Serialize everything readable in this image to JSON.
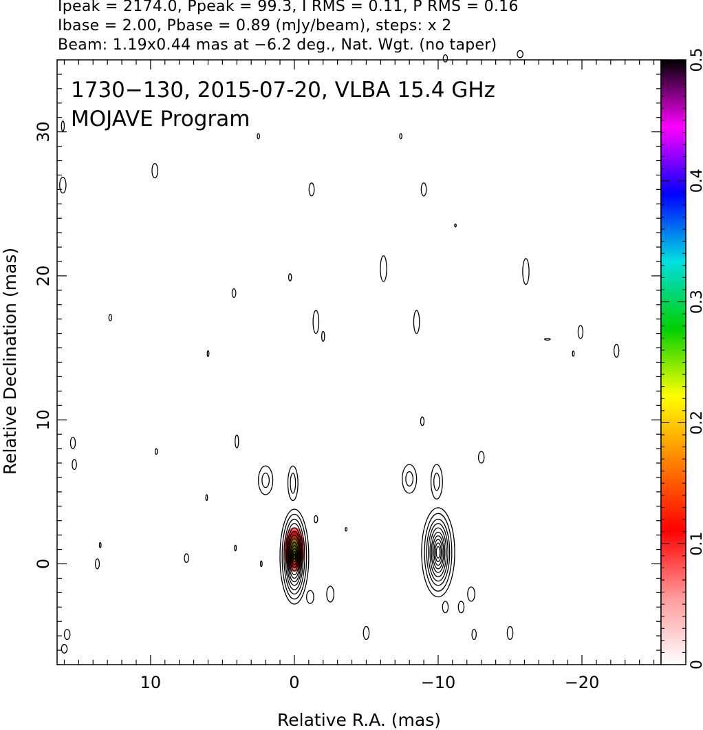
{
  "header": {
    "line1": "Ipeak = 2174.0, Ppeak = 99.3, I RMS = 0.11, P RMS = 0.16",
    "line2": "Ibase = 2.00, Pbase = 0.89 (mJy/beam), steps: x 2",
    "line3": "Beam: 1.19x0.44 mas at −6.2 deg., Nat. Wgt. (no taper)"
  },
  "chart_data": {
    "type": "contour",
    "title": "1730−130, 2015-07-20, VLBA 15.4 GHz",
    "subtitle": "MOJAVE Program",
    "xlabel": "Relative R.A. (mas)",
    "ylabel": "Relative Declination (mas)",
    "xlim": [
      16.5,
      -25.5
    ],
    "ylim": [
      -7,
      35
    ],
    "x_ticks": [
      10,
      0,
      -10,
      -20
    ],
    "x_tick_labels": [
      "10",
      "0",
      "−10",
      "−20"
    ],
    "y_ticks": [
      0,
      10,
      20,
      30
    ],
    "y_tick_labels": [
      "0",
      "10",
      "20",
      "30"
    ],
    "colorbar": {
      "min": 0,
      "max": 0.5,
      "ticks": [
        0,
        0.1,
        0.2,
        0.3,
        0.4,
        0.5
      ],
      "tick_labels": [
        "0",
        "0.1",
        "0.2",
        "0.3",
        "0.4",
        "0.5"
      ],
      "stops": [
        "#ffffff",
        "#ff9a9a",
        "#ff0000",
        "#ff8000",
        "#ffff00",
        "#00d000",
        "#00e0e0",
        "#0000ff",
        "#ff00ff",
        "#000000"
      ]
    },
    "components": [
      {
        "name": "core",
        "x": 0.0,
        "y": 0.5,
        "levels": [
          [
            1.0,
            3.3
          ],
          [
            0.85,
            2.95
          ],
          [
            0.72,
            2.6
          ],
          [
            0.62,
            2.3
          ],
          [
            0.54,
            2.0
          ],
          [
            0.47,
            1.75
          ],
          [
            0.41,
            1.5
          ],
          [
            0.35,
            1.25
          ],
          [
            0.29,
            1.0
          ],
          [
            0.23,
            0.78
          ],
          [
            0.17,
            0.56
          ],
          [
            0.11,
            0.36
          ],
          [
            0.06,
            0.18
          ]
        ]
      },
      {
        "name": "twin-image",
        "x": -10.0,
        "y": 0.8,
        "levels": [
          [
            1.15,
            3.1
          ],
          [
            0.95,
            2.7
          ],
          [
            0.8,
            2.3
          ],
          [
            0.68,
            2.0
          ],
          [
            0.57,
            1.7
          ],
          [
            0.47,
            1.4
          ],
          [
            0.38,
            1.15
          ],
          [
            0.29,
            0.9
          ],
          [
            0.21,
            0.65
          ],
          [
            0.13,
            0.4
          ]
        ]
      },
      {
        "name": "blob",
        "x": 2.0,
        "y": 5.8,
        "levels": [
          [
            0.5,
            1.0
          ],
          [
            0.25,
            0.5
          ]
        ]
      },
      {
        "name": "blob",
        "x": 0.1,
        "y": 5.6,
        "levels": [
          [
            0.35,
            1.2
          ],
          [
            0.18,
            0.7
          ]
        ]
      },
      {
        "name": "blob",
        "x": -8.0,
        "y": 5.9,
        "levels": [
          [
            0.5,
            1.0
          ],
          [
            0.25,
            0.5
          ]
        ]
      },
      {
        "name": "blob",
        "x": -9.9,
        "y": 5.7,
        "levels": [
          [
            0.4,
            1.2
          ],
          [
            0.2,
            0.6
          ]
        ]
      },
      {
        "name": "blob",
        "x": -1.2,
        "y": 26.0,
        "levels": [
          [
            0.18,
            0.45
          ]
        ]
      },
      {
        "name": "blob",
        "x": -9.0,
        "y": 26.0,
        "levels": [
          [
            0.18,
            0.45
          ]
        ]
      },
      {
        "name": "blob",
        "x": 9.7,
        "y": 27.3,
        "levels": [
          [
            0.2,
            0.5
          ]
        ]
      },
      {
        "name": "blob",
        "x": 16.1,
        "y": 26.3,
        "levels": [
          [
            0.22,
            0.55
          ]
        ]
      },
      {
        "name": "blob",
        "x": -6.2,
        "y": 20.5,
        "levels": [
          [
            0.22,
            0.9
          ]
        ]
      },
      {
        "name": "blob",
        "x": -16.1,
        "y": 20.3,
        "levels": [
          [
            0.22,
            0.9
          ]
        ]
      },
      {
        "name": "blob",
        "x": -1.5,
        "y": 16.8,
        "levels": [
          [
            0.2,
            0.8
          ]
        ]
      },
      {
        "name": "blob",
        "x": -8.5,
        "y": 16.8,
        "levels": [
          [
            0.2,
            0.8
          ]
        ]
      },
      {
        "name": "blob",
        "x": -19.9,
        "y": 16.1,
        "levels": [
          [
            0.17,
            0.45
          ]
        ]
      },
      {
        "name": "blob",
        "x": -22.4,
        "y": 14.8,
        "levels": [
          [
            0.17,
            0.45
          ]
        ]
      },
      {
        "name": "blob",
        "x": 4.2,
        "y": 18.8,
        "levels": [
          [
            0.13,
            0.3
          ]
        ]
      },
      {
        "name": "blob",
        "x": 15.4,
        "y": 8.4,
        "levels": [
          [
            0.17,
            0.4
          ]
        ]
      },
      {
        "name": "blob",
        "x": 15.3,
        "y": 6.9,
        "levels": [
          [
            0.15,
            0.35
          ]
        ]
      },
      {
        "name": "blob",
        "x": -13.0,
        "y": 7.4,
        "levels": [
          [
            0.2,
            0.4
          ]
        ]
      },
      {
        "name": "blob",
        "x": -8.9,
        "y": 9.9,
        "levels": [
          [
            0.12,
            0.3
          ]
        ]
      },
      {
        "name": "blob",
        "x": -2.5,
        "y": -2.1,
        "levels": [
          [
            0.25,
            0.55
          ]
        ]
      },
      {
        "name": "blob",
        "x": -1.1,
        "y": -2.3,
        "levels": [
          [
            0.25,
            0.45
          ]
        ]
      },
      {
        "name": "blob",
        "x": -12.3,
        "y": -2.1,
        "levels": [
          [
            0.25,
            0.5
          ]
        ]
      },
      {
        "name": "blob",
        "x": -10.5,
        "y": -3.0,
        "levels": [
          [
            0.2,
            0.4
          ]
        ]
      },
      {
        "name": "blob",
        "x": -11.6,
        "y": -3.0,
        "levels": [
          [
            0.2,
            0.4
          ]
        ]
      },
      {
        "name": "blob",
        "x": 13.7,
        "y": 0.0,
        "levels": [
          [
            0.14,
            0.35
          ]
        ]
      },
      {
        "name": "blob",
        "x": 7.5,
        "y": 0.4,
        "levels": [
          [
            0.15,
            0.3
          ]
        ]
      },
      {
        "name": "blob",
        "x": -5.0,
        "y": -4.8,
        "levels": [
          [
            0.2,
            0.45
          ]
        ]
      },
      {
        "name": "blob",
        "x": -15.0,
        "y": -4.8,
        "levels": [
          [
            0.2,
            0.45
          ]
        ]
      },
      {
        "name": "blob",
        "x": 15.8,
        "y": -4.9,
        "levels": [
          [
            0.2,
            0.35
          ]
        ]
      },
      {
        "name": "blob",
        "x": -12.5,
        "y": -4.9,
        "levels": [
          [
            0.15,
            0.35
          ]
        ]
      },
      {
        "name": "blob",
        "x": -10.5,
        "y": 35.1,
        "levels": [
          [
            0.15,
            0.25
          ]
        ]
      },
      {
        "name": "blob",
        "x": -15.7,
        "y": 35.4,
        "levels": [
          [
            0.2,
            0.25
          ]
        ]
      },
      {
        "name": "blob",
        "x": 16.1,
        "y": 30.4,
        "levels": [
          [
            0.1,
            0.35
          ]
        ]
      },
      {
        "name": "blob",
        "x": 2.5,
        "y": 29.7,
        "levels": [
          [
            0.08,
            0.18
          ]
        ]
      },
      {
        "name": "blob",
        "x": -7.4,
        "y": 29.7,
        "levels": [
          [
            0.08,
            0.18
          ]
        ]
      },
      {
        "name": "blob",
        "x": 12.8,
        "y": 17.1,
        "levels": [
          [
            0.1,
            0.22
          ]
        ]
      },
      {
        "name": "blob",
        "x": 9.6,
        "y": 7.8,
        "levels": [
          [
            0.08,
            0.2
          ]
        ]
      },
      {
        "name": "blob",
        "x": 4.0,
        "y": 8.5,
        "levels": [
          [
            0.12,
            0.45
          ]
        ]
      },
      {
        "name": "blob",
        "x": 0.3,
        "y": 19.9,
        "levels": [
          [
            0.1,
            0.25
          ]
        ]
      },
      {
        "name": "blob",
        "x": -2.0,
        "y": 15.8,
        "levels": [
          [
            0.1,
            0.35
          ]
        ]
      },
      {
        "name": "blob",
        "x": 6.0,
        "y": 14.6,
        "levels": [
          [
            0.06,
            0.2
          ]
        ]
      },
      {
        "name": "blob",
        "x": 6.1,
        "y": 4.6,
        "levels": [
          [
            0.06,
            0.2
          ]
        ]
      },
      {
        "name": "blob",
        "x": 4.1,
        "y": 1.1,
        "levels": [
          [
            0.06,
            0.2
          ]
        ]
      },
      {
        "name": "blob",
        "x": 13.5,
        "y": 1.3,
        "levels": [
          [
            0.06,
            0.18
          ]
        ]
      },
      {
        "name": "blob",
        "x": 2.3,
        "y": 0.0,
        "levels": [
          [
            0.06,
            0.2
          ]
        ]
      },
      {
        "name": "blob",
        "x": -11.2,
        "y": 23.5,
        "levels": [
          [
            0.06,
            0.1
          ]
        ]
      },
      {
        "name": "blob",
        "x": -17.6,
        "y": 15.6,
        "levels": [
          [
            0.2,
            0.06
          ]
        ]
      },
      {
        "name": "blob",
        "x": -19.4,
        "y": 14.6,
        "levels": [
          [
            0.06,
            0.18
          ]
        ]
      },
      {
        "name": "blob",
        "x": -1.5,
        "y": 3.1,
        "levels": [
          [
            0.12,
            0.25
          ]
        ]
      },
      {
        "name": "blob",
        "x": -3.6,
        "y": 2.4,
        "levels": [
          [
            0.06,
            0.12
          ]
        ]
      },
      {
        "name": "blob",
        "x": 16.0,
        "y": -5.9,
        "levels": [
          [
            0.2,
            0.3
          ]
        ]
      }
    ],
    "polarization": {
      "x": 0.0,
      "y": 1.0,
      "levels": [
        [
          0.75,
          1.55
        ],
        [
          0.6,
          1.3
        ],
        [
          0.45,
          1.05
        ],
        [
          0.3,
          0.8
        ],
        [
          0.18,
          0.55
        ]
      ],
      "fills": [
        "#ff6060",
        "#e01010",
        "#c83000",
        "#a07000",
        "#607000"
      ]
    }
  }
}
